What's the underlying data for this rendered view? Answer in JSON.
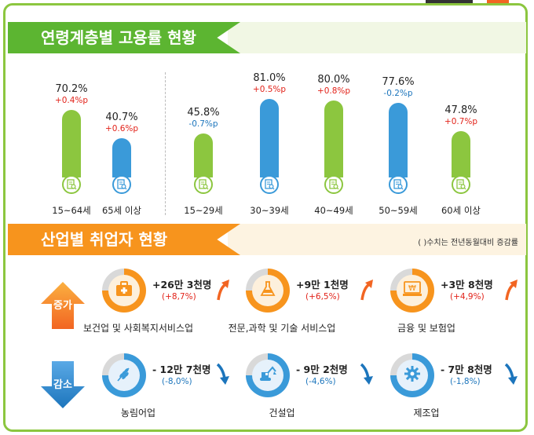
{
  "section1": {
    "title": "연령계층별 고용률 현황"
  },
  "section2": {
    "title": "산업별 취업자 현황",
    "note": "( )수치는 전년동월대비 증감률"
  },
  "chart_data": {
    "type": "bar",
    "unit": "%",
    "ylim": [
      0,
      100
    ],
    "categories": [
      "15~64세",
      "65세 이상",
      "15~29세",
      "30~39세",
      "40~49세",
      "50~59세",
      "60세 이상"
    ],
    "values": [
      70.2,
      40.7,
      45.8,
      81.0,
      80.0,
      77.6,
      47.8
    ],
    "value_labels": [
      "70.2%",
      "40.7%",
      "45.8%",
      "81.0%",
      "80.0%",
      "77.6%",
      "47.8%"
    ],
    "change_labels": [
      "+0.4%p",
      "+0.6%p",
      "-0.7%p",
      "+0.5%p",
      "+0.8%p",
      "-0.2%p",
      "+0.7%p"
    ],
    "colors": [
      "#8cc63f",
      "#3a9ad9",
      "#8cc63f",
      "#3a9ad9",
      "#8cc63f",
      "#3a9ad9",
      "#8cc63f"
    ]
  },
  "industry": {
    "increase_label": "증가",
    "decrease_label": "감소",
    "increase": [
      {
        "name": "보건업 및 사회복지서비스업",
        "value": "+26만 3천명",
        "rate": "(+8,7%)",
        "icon": "first-aid-kit-icon",
        "ratio": 0.75
      },
      {
        "name": "전문,과학 및 기술 서비스업",
        "value": "+9만 1천명",
        "rate": "(+6,5%)",
        "icon": "lab-flask-icon",
        "ratio": 0.75
      },
      {
        "name": "금융 및 보험업",
        "value": "+3만 8천명",
        "rate": "(+4,9%)",
        "icon": "won-monitor-icon",
        "ratio": 0.75
      }
    ],
    "decrease": [
      {
        "name": "농림어업",
        "value": "- 12만 7천명",
        "rate": "(-8,0%)",
        "icon": "wheat-icon",
        "ratio": 0.75
      },
      {
        "name": "건설업",
        "value": "- 9만 2천명",
        "rate": "(-4,6%)",
        "icon": "excavator-icon",
        "ratio": 0.75
      },
      {
        "name": "제조업",
        "value": "- 7만 8천명",
        "rate": "(-1,8%)",
        "icon": "gear-icon",
        "ratio": 0.75
      }
    ]
  }
}
